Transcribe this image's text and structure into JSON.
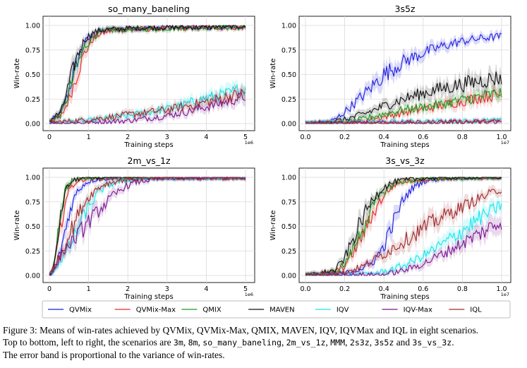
{
  "colors": {
    "QVMix": "#1f1fe0",
    "QVMix-Max": "#e8272a",
    "QMIX": "#1e9a1e",
    "MAVEN": "#111111",
    "IQV": "#14e6ee",
    "IQV-Max": "#7a1590",
    "IQL": "#a02a2e"
  },
  "legend": [
    "QVMix",
    "QVMix-Max",
    "QMIX",
    "MAVEN",
    "IQV",
    "IQV-Max",
    "IQL"
  ],
  "chart_data": [
    {
      "type": "line",
      "title": "so_many_baneling",
      "xlabel": "Training steps",
      "ylabel": "Win-rate",
      "x_exponent": "1e6",
      "xlim": [
        0,
        5
      ],
      "ylim": [
        0,
        1
      ],
      "xticks": [
        "0",
        "1",
        "2",
        "3",
        "4",
        "5"
      ],
      "yticks": [
        "0.00",
        "0.25",
        "0.50",
        "0.75",
        "1.00"
      ],
      "grid": true,
      "series": [
        {
          "name": "QVMix",
          "x": [
            0,
            0.3,
            0.5,
            0.7,
            0.9,
            1.1,
            1.3,
            1.6,
            2,
            3,
            4,
            5
          ],
          "y": [
            0.02,
            0.1,
            0.35,
            0.62,
            0.82,
            0.9,
            0.94,
            0.96,
            0.97,
            0.98,
            0.98,
            0.98
          ]
        },
        {
          "name": "QVMix-Max",
          "x": [
            0,
            0.3,
            0.5,
            0.7,
            0.9,
            1.1,
            1.3,
            1.6,
            2,
            3,
            4,
            5
          ],
          "y": [
            0.02,
            0.07,
            0.25,
            0.5,
            0.72,
            0.86,
            0.92,
            0.95,
            0.96,
            0.97,
            0.98,
            0.98
          ]
        },
        {
          "name": "QMIX",
          "x": [
            0,
            0.3,
            0.5,
            0.7,
            0.9,
            1.1,
            1.3,
            1.6,
            2,
            3,
            4,
            5
          ],
          "y": [
            0.02,
            0.09,
            0.32,
            0.58,
            0.78,
            0.88,
            0.93,
            0.95,
            0.96,
            0.97,
            0.98,
            0.98
          ]
        },
        {
          "name": "MAVEN",
          "x": [
            0,
            0.3,
            0.5,
            0.7,
            0.9,
            1.1,
            1.3,
            1.6,
            2,
            3,
            4,
            5
          ],
          "y": [
            0.03,
            0.12,
            0.4,
            0.68,
            0.86,
            0.92,
            0.95,
            0.96,
            0.97,
            0.98,
            0.98,
            0.99
          ]
        },
        {
          "name": "IQV",
          "x": [
            0,
            1,
            2,
            3,
            3.5,
            4,
            4.5,
            5
          ],
          "y": [
            0.01,
            0.03,
            0.08,
            0.15,
            0.2,
            0.26,
            0.3,
            0.36
          ]
        },
        {
          "name": "IQV-Max",
          "x": [
            0,
            1,
            2,
            3,
            3.5,
            4,
            4.5,
            5
          ],
          "y": [
            0.0,
            0.01,
            0.03,
            0.08,
            0.12,
            0.17,
            0.22,
            0.28
          ]
        },
        {
          "name": "IQL",
          "x": [
            0,
            1,
            2,
            3,
            3.5,
            4,
            4.5,
            5
          ],
          "y": [
            0.01,
            0.04,
            0.09,
            0.14,
            0.18,
            0.22,
            0.27,
            0.31
          ]
        }
      ]
    },
    {
      "type": "line",
      "title": "3s5z",
      "xlabel": "Training steps",
      "ylabel": "Win-rate",
      "x_exponent": "1e7",
      "xlim": [
        0,
        1
      ],
      "ylim": [
        0,
        1
      ],
      "xticks": [
        "0.0",
        "0.2",
        "0.4",
        "0.6",
        "0.8",
        "1.0"
      ],
      "yticks": [
        "0.00",
        "0.25",
        "0.50",
        "0.75",
        "1.00"
      ],
      "grid": true,
      "series": [
        {
          "name": "QVMix",
          "x": [
            0,
            0.1,
            0.15,
            0.2,
            0.3,
            0.4,
            0.5,
            0.6,
            0.7,
            0.8,
            0.9,
            1.0
          ],
          "y": [
            0.0,
            0.01,
            0.04,
            0.12,
            0.3,
            0.5,
            0.63,
            0.72,
            0.79,
            0.84,
            0.87,
            0.89
          ]
        },
        {
          "name": "QVMix-Max",
          "x": [
            0,
            0.2,
            0.3,
            0.4,
            0.5,
            0.6,
            0.7,
            0.8,
            0.9,
            1.0
          ],
          "y": [
            0.0,
            0.01,
            0.03,
            0.07,
            0.11,
            0.15,
            0.19,
            0.23,
            0.27,
            0.3
          ]
        },
        {
          "name": "QMIX",
          "x": [
            0,
            0.2,
            0.3,
            0.4,
            0.5,
            0.6,
            0.7,
            0.8,
            0.9,
            1.0
          ],
          "y": [
            0.0,
            0.01,
            0.05,
            0.1,
            0.14,
            0.17,
            0.2,
            0.24,
            0.28,
            0.31
          ]
        },
        {
          "name": "MAVEN",
          "x": [
            0,
            0.1,
            0.2,
            0.3,
            0.4,
            0.5,
            0.6,
            0.7,
            0.8,
            0.9,
            1.0
          ],
          "y": [
            0.0,
            0.01,
            0.04,
            0.1,
            0.18,
            0.25,
            0.31,
            0.36,
            0.4,
            0.44,
            0.47
          ]
        },
        {
          "name": "IQV",
          "x": [
            0,
            0.5,
            1.0
          ],
          "y": [
            0.01,
            0.02,
            0.03
          ]
        },
        {
          "name": "IQV-Max",
          "x": [
            0,
            0.5,
            1.0
          ],
          "y": [
            0.0,
            0.01,
            0.02
          ]
        },
        {
          "name": "IQL",
          "x": [
            0,
            0.5,
            1.0
          ],
          "y": [
            0.0,
            0.01,
            0.02
          ]
        }
      ]
    },
    {
      "type": "line",
      "title": "2m_vs_1z",
      "xlabel": "Training steps",
      "ylabel": "Win-rate",
      "x_exponent": "1e6",
      "xlim": [
        0,
        5
      ],
      "ylim": [
        0,
        1
      ],
      "xticks": [
        "0",
        "1",
        "2",
        "3",
        "4",
        "5"
      ],
      "yticks": [
        "0.00",
        "0.25",
        "0.50",
        "0.75",
        "1.00"
      ],
      "grid": true,
      "series": [
        {
          "name": "QVMix",
          "x": [
            0,
            0.1,
            0.25,
            0.4,
            0.55,
            0.7,
            0.85,
            1.0,
            1.2,
            1.5,
            2,
            3,
            5
          ],
          "y": [
            0.0,
            0.02,
            0.2,
            0.45,
            0.7,
            0.85,
            0.92,
            0.96,
            0.98,
            0.99,
            0.99,
            1.0,
            1.0
          ]
        },
        {
          "name": "QVMix-Max",
          "x": [
            0,
            0.1,
            0.25,
            0.4,
            0.55,
            0.7,
            0.85,
            1.0,
            1.2,
            1.5,
            2,
            3,
            5
          ],
          "y": [
            0.0,
            0.05,
            0.4,
            0.75,
            0.9,
            0.96,
            0.98,
            0.99,
            0.99,
            1.0,
            1.0,
            1.0,
            0.99
          ]
        },
        {
          "name": "QMIX",
          "x": [
            0,
            0.1,
            0.25,
            0.4,
            0.55,
            0.7,
            0.85,
            1.0,
            1.2,
            1.5,
            2,
            3,
            5
          ],
          "y": [
            0.0,
            0.08,
            0.55,
            0.88,
            0.96,
            0.98,
            0.99,
            1.0,
            1.0,
            1.0,
            1.0,
            1.0,
            1.0
          ]
        },
        {
          "name": "MAVEN",
          "x": [
            0,
            0.1,
            0.25,
            0.4,
            0.55,
            0.7,
            0.85,
            1.0,
            1.2,
            1.5,
            2,
            3,
            5
          ],
          "y": [
            0.0,
            0.06,
            0.5,
            0.85,
            0.95,
            0.98,
            0.99,
            1.0,
            1.0,
            1.0,
            1.0,
            1.0,
            1.0
          ]
        },
        {
          "name": "IQV",
          "x": [
            0,
            0.2,
            0.4,
            0.6,
            0.8,
            1.0,
            1.2,
            1.4,
            1.7,
            2.0,
            2.5,
            3,
            5
          ],
          "y": [
            0.0,
            0.1,
            0.22,
            0.36,
            0.55,
            0.7,
            0.82,
            0.9,
            0.95,
            0.97,
            0.99,
            0.99,
            1.0
          ]
        },
        {
          "name": "IQV-Max",
          "x": [
            0,
            0.2,
            0.4,
            0.6,
            0.8,
            1.0,
            1.3,
            1.6,
            1.9,
            2.2,
            2.5,
            3,
            5
          ],
          "y": [
            0.0,
            0.12,
            0.28,
            0.35,
            0.45,
            0.55,
            0.68,
            0.8,
            0.9,
            0.95,
            0.97,
            0.99,
            1.0
          ]
        },
        {
          "name": "IQL",
          "x": [
            0,
            0.2,
            0.4,
            0.6,
            0.8,
            1.0,
            1.2,
            1.4,
            1.7,
            2.0,
            2.5,
            3,
            5
          ],
          "y": [
            0.0,
            0.15,
            0.32,
            0.5,
            0.68,
            0.8,
            0.88,
            0.93,
            0.96,
            0.98,
            0.99,
            1.0,
            1.0
          ]
        }
      ]
    },
    {
      "type": "line",
      "title": "3s_vs_3z",
      "xlabel": "Training steps",
      "ylabel": "Win-rate",
      "x_exponent": "1e7",
      "xlim": [
        0,
        1
      ],
      "ylim": [
        0,
        1
      ],
      "xticks": [
        "0.0",
        "0.2",
        "0.4",
        "0.6",
        "0.8",
        "1.0"
      ],
      "yticks": [
        "0.00",
        "0.25",
        "0.50",
        "0.75",
        "1.00"
      ],
      "grid": true,
      "series": [
        {
          "name": "QVMix",
          "x": [
            0,
            0.2,
            0.3,
            0.35,
            0.4,
            0.45,
            0.5,
            0.55,
            0.6,
            0.7,
            0.8,
            1.0
          ],
          "y": [
            0.0,
            0.02,
            0.08,
            0.15,
            0.3,
            0.55,
            0.78,
            0.9,
            0.96,
            0.99,
            1.0,
            1.0
          ]
        },
        {
          "name": "QVMix-Max",
          "x": [
            0,
            0.15,
            0.2,
            0.25,
            0.3,
            0.35,
            0.4,
            0.45,
            0.5,
            0.6,
            0.7,
            1.0
          ],
          "y": [
            0.0,
            0.03,
            0.1,
            0.25,
            0.45,
            0.65,
            0.82,
            0.92,
            0.96,
            0.98,
            0.99,
            1.0
          ]
        },
        {
          "name": "QMIX",
          "x": [
            0,
            0.15,
            0.2,
            0.25,
            0.3,
            0.35,
            0.4,
            0.45,
            0.5,
            0.6,
            0.7,
            1.0
          ],
          "y": [
            0.0,
            0.03,
            0.12,
            0.3,
            0.52,
            0.72,
            0.86,
            0.93,
            0.96,
            0.98,
            0.99,
            1.0
          ]
        },
        {
          "name": "MAVEN",
          "x": [
            0,
            0.15,
            0.2,
            0.25,
            0.3,
            0.35,
            0.4,
            0.45,
            0.5,
            0.6,
            0.7,
            1.0
          ],
          "y": [
            0.0,
            0.05,
            0.18,
            0.4,
            0.62,
            0.8,
            0.9,
            0.95,
            0.97,
            0.99,
            1.0,
            1.0
          ]
        },
        {
          "name": "IQV",
          "x": [
            0,
            0.3,
            0.4,
            0.5,
            0.6,
            0.7,
            0.8,
            0.9,
            1.0
          ],
          "y": [
            0.0,
            0.01,
            0.04,
            0.1,
            0.2,
            0.32,
            0.46,
            0.6,
            0.72
          ]
        },
        {
          "name": "IQV-Max",
          "x": [
            0,
            0.4,
            0.5,
            0.6,
            0.7,
            0.8,
            0.9,
            1.0
          ],
          "y": [
            0.0,
            0.01,
            0.05,
            0.12,
            0.22,
            0.33,
            0.44,
            0.55
          ]
        },
        {
          "name": "IQL",
          "x": [
            0,
            0.2,
            0.3,
            0.4,
            0.5,
            0.6,
            0.7,
            0.8,
            0.9,
            1.0
          ],
          "y": [
            0.0,
            0.03,
            0.1,
            0.22,
            0.35,
            0.48,
            0.6,
            0.7,
            0.8,
            0.88
          ]
        }
      ]
    }
  ],
  "caption": {
    "line1": "Figure 3: Means of win-rates achieved by QVMix, QVMix-Max, QMIX, MAVEN, IQV, IQVMax and IQL in eight scenarios.",
    "line2_prefix": "Top to bottom, left to right, the scenarios are ",
    "scenarios": [
      "3m",
      "8m",
      "so_many_baneling",
      "2m_vs_1z",
      "MMM",
      "2s3z",
      "3s5z",
      "3s_vs_3z"
    ],
    "sep": ", ",
    "and": " and ",
    "end": ".",
    "line3": "The error band is proportional to the variance of win-rates."
  }
}
